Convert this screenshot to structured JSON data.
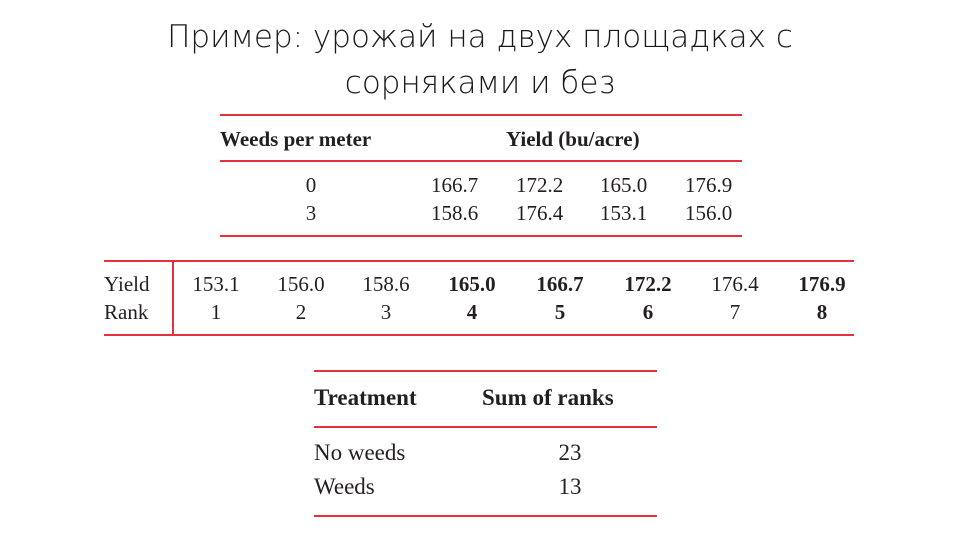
{
  "title": {
    "line1": "Пример: урожай на двух площадках с",
    "line2": "сорняками и без"
  },
  "table1": {
    "headers": {
      "weeds": "Weeds per meter",
      "yield": "Yield (bu/acre)"
    },
    "rows": [
      {
        "weeds": "0",
        "values": [
          "166.7",
          "172.2",
          "165.0",
          "176.9"
        ]
      },
      {
        "weeds": "3",
        "values": [
          "158.6",
          "176.4",
          "153.1",
          "156.0"
        ]
      }
    ]
  },
  "table2": {
    "row_labels": [
      "Yield",
      "Rank"
    ],
    "yields": [
      "153.1",
      "156.0",
      "158.6",
      "165.0",
      "166.7",
      "172.2",
      "176.4",
      "176.9"
    ],
    "ranks": [
      "1",
      "2",
      "3",
      "4",
      "5",
      "6",
      "7",
      "8"
    ],
    "bold_flags": [
      false,
      false,
      false,
      true,
      true,
      true,
      false,
      true
    ]
  },
  "table3": {
    "headers": {
      "treatment": "Treatment",
      "sum": "Sum of ranks"
    },
    "rows": [
      {
        "treatment": "No weeds",
        "sum": "23"
      },
      {
        "treatment": "Weeds",
        "sum": "13"
      }
    ]
  },
  "colors": {
    "rule": "#e4323c",
    "text": "#231f20"
  }
}
